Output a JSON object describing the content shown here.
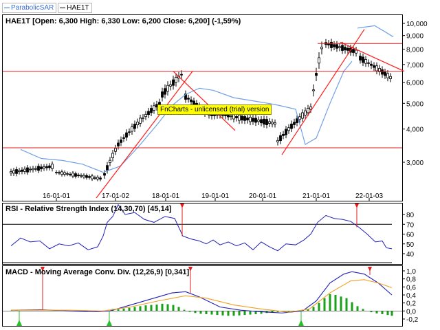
{
  "legend": [
    {
      "label": "ParabolicSAR",
      "color": "#1f6fd6"
    },
    {
      "label": "HAE1T",
      "color": "#000000"
    }
  ],
  "main_panel": {
    "title": "HAE1T [Open: 6,300  High: 6,330  Low: 6,200  Close: 6,200] (-1,59%)",
    "y_labels": [
      "10,000",
      "9,000",
      "8,000",
      "7,000",
      "6,000",
      "5,000",
      "4,000",
      "3,000"
    ],
    "x_labels": [
      "16-01-01",
      "17-01-02",
      "18-01-01",
      "19-01-01",
      "20-01-01",
      "21-01-01",
      "22-01-03"
    ],
    "watermark": "FnCharts - unlicensed (trial) version"
  },
  "rsi_panel": {
    "title": "RSI - Relative Strength Index (14,30,70) [45,14]",
    "y_labels": [
      "80",
      "70",
      "60",
      "50",
      "40"
    ]
  },
  "macd_panel": {
    "title": "MACD - Moving Average Conv. Div. (12,26,9) [0,341]",
    "y_labels": [
      "1,0",
      "0,8",
      "0,6",
      "0,4",
      "0,2",
      "0,0",
      "-0,2"
    ]
  },
  "colors": {
    "sar": "#6fa0e6",
    "hline": "#e02020",
    "trend": "#ff1a1a",
    "rsi": "#1f1fb8",
    "macd": "#1f1fb8",
    "signal": "#f0a020",
    "hist": "#18a018",
    "signal_up": "#28c028",
    "signal_down": "#e02020",
    "watermark_bg": "#ffff00"
  }
}
